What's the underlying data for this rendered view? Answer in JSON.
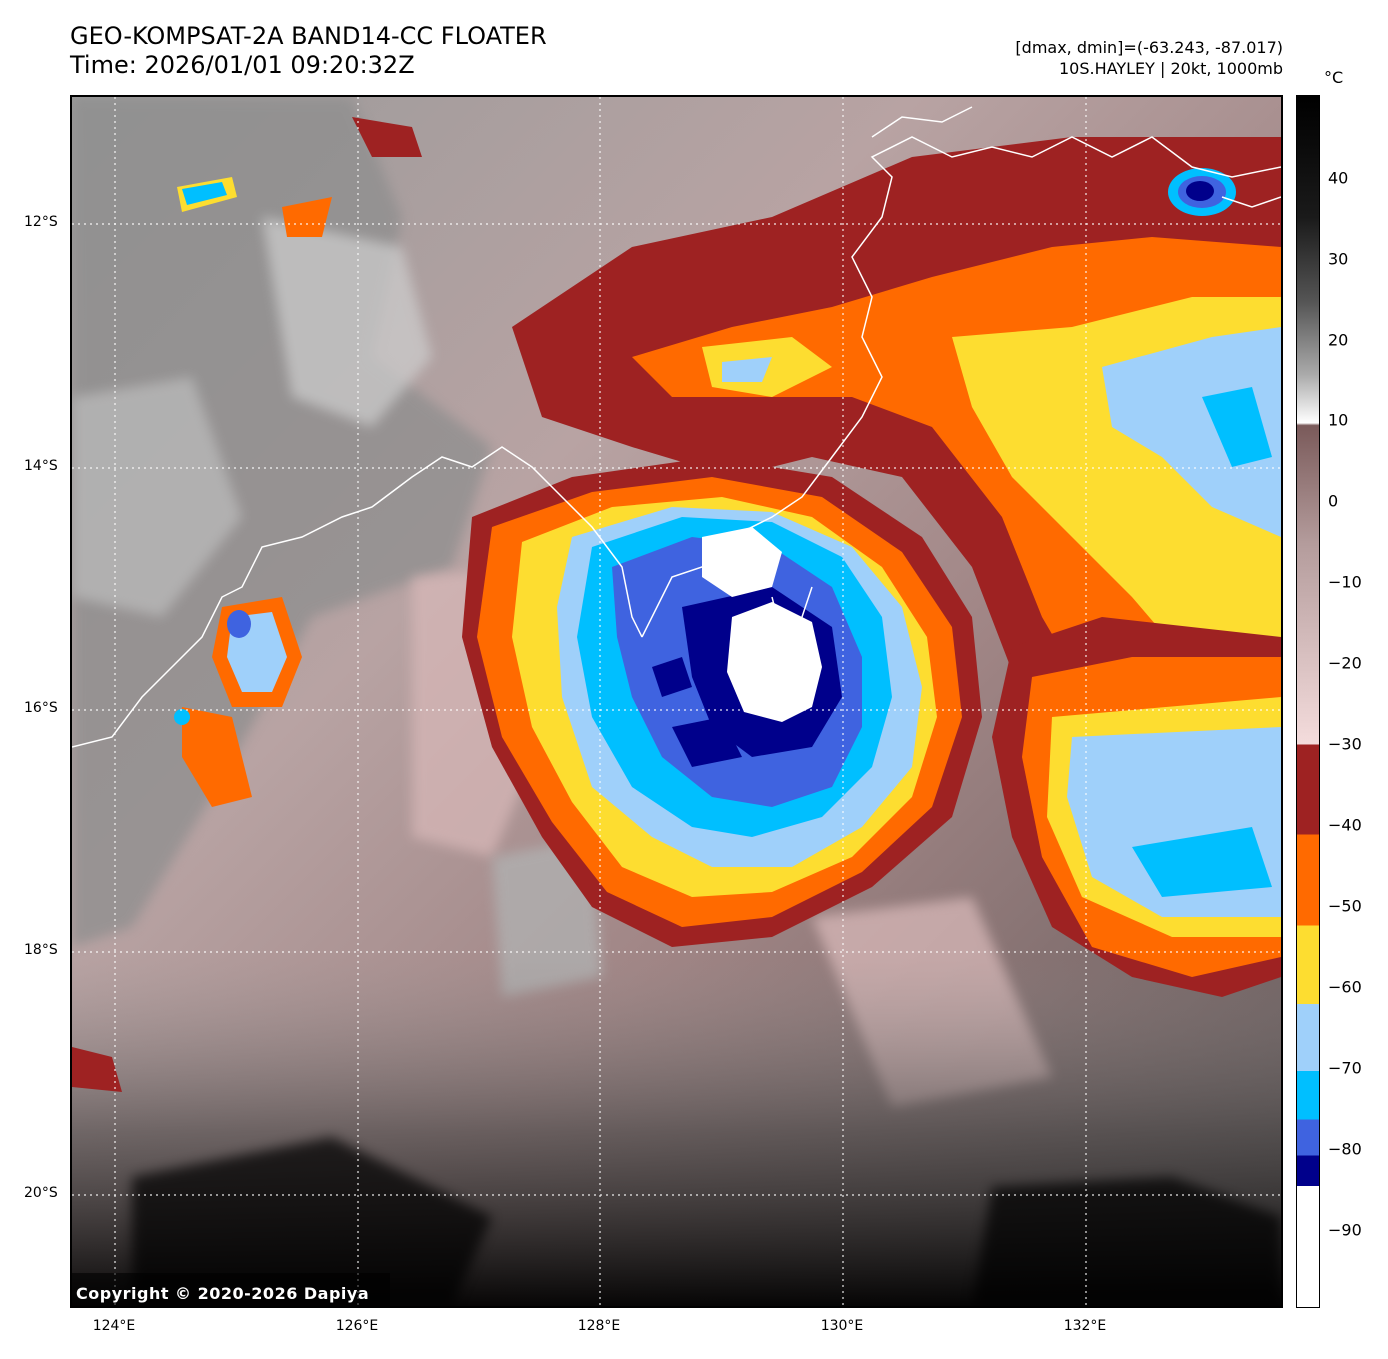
{
  "header": {
    "title_line1": "GEO-KOMPSAT-2A BAND14-CC FLOATER",
    "title_line2": "Time: 2026/01/01 09:20:32Z",
    "info_line1": "[dmax, dmin]=(-63.243, -87.017)",
    "info_line2": "10S.HAYLEY | 20kt, 1000mb"
  },
  "colorbar": {
    "unit": "°C",
    "ticks": [
      "40",
      "30",
      "20",
      "10",
      "0",
      "−10",
      "−20",
      "−30",
      "−40",
      "−50",
      "−60",
      "−70",
      "−80",
      "−90"
    ],
    "colors": {
      "black": "#000000",
      "white": "#ffffff",
      "brown_top": "#7a5a5a",
      "pink": "#f4dcdc",
      "dark_red": "#9e2222",
      "orange": "#ff6a00",
      "yellow": "#fddd30",
      "light_blue": "#9fd0fa",
      "cyan": "#00bfff",
      "royal_blue": "#3f63e0",
      "navy": "#00008b"
    }
  },
  "map": {
    "lat_labels": [
      "12°S",
      "14°S",
      "16°S",
      "18°S",
      "20°S"
    ],
    "lon_labels": [
      "124°E",
      "126°E",
      "128°E",
      "130°E",
      "132°E"
    ],
    "copyright": "Copyright © 2020-2026 Dapiya"
  }
}
